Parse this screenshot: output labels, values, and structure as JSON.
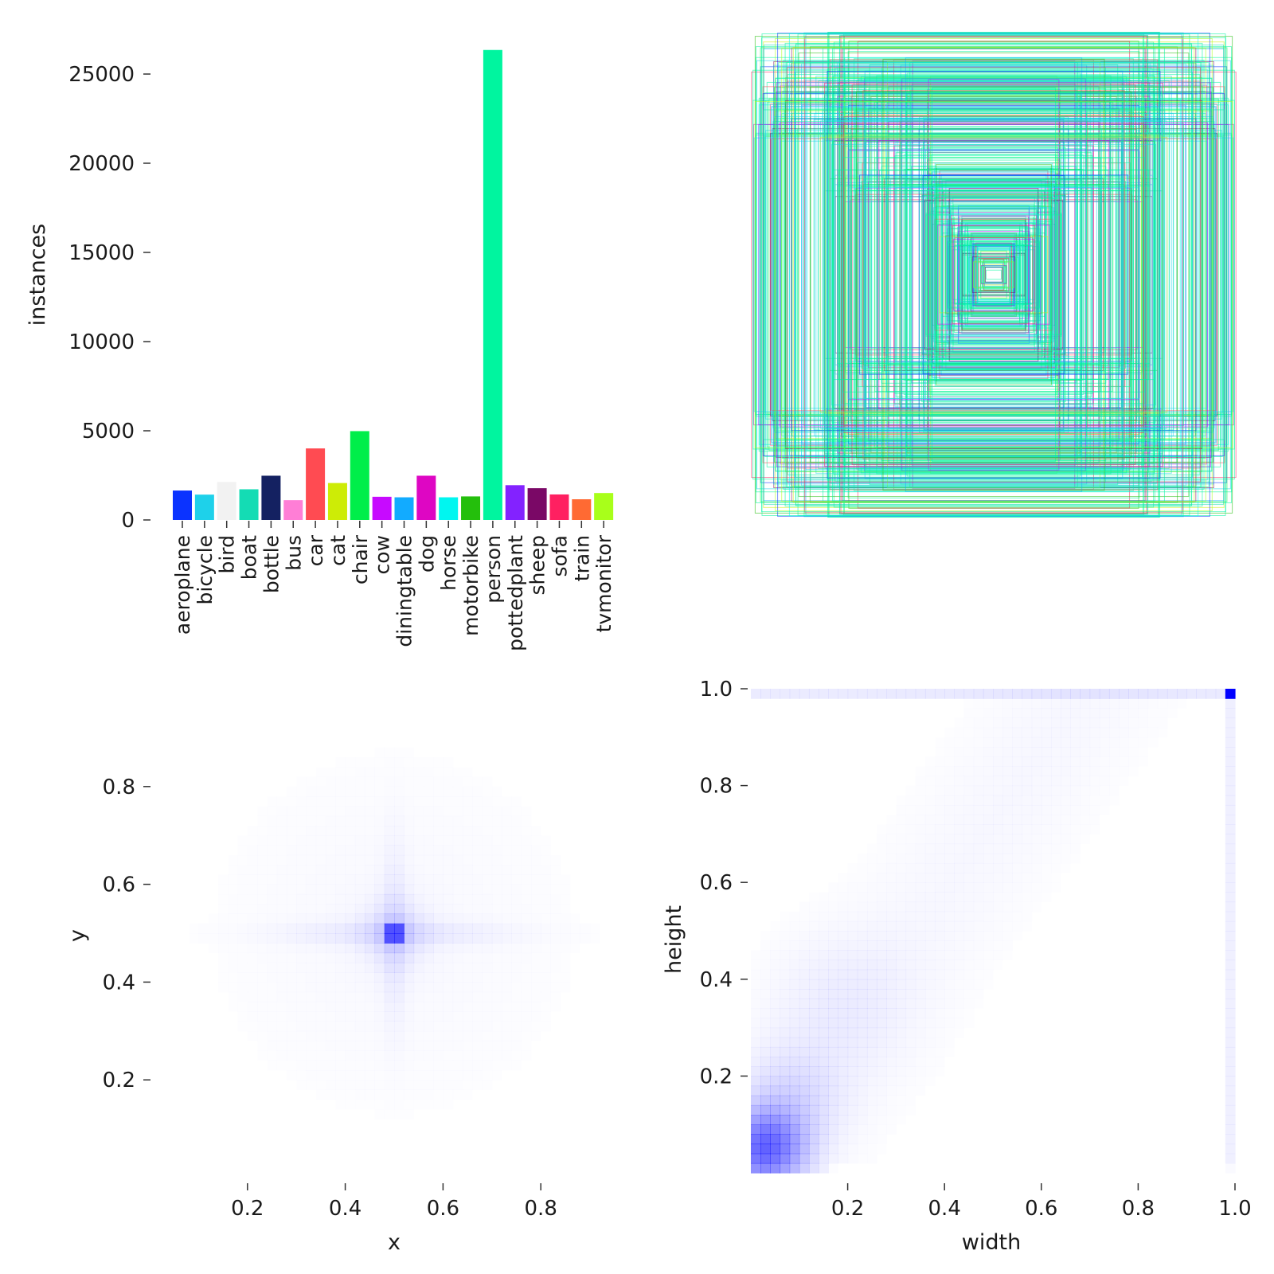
{
  "chart_data": [
    {
      "type": "bar",
      "ylabel": "instances",
      "ylim": [
        0,
        26500
      ],
      "yticks": [
        0,
        5000,
        10000,
        15000,
        20000,
        25000
      ],
      "categories": [
        "aeroplane",
        "bicycle",
        "bird",
        "boat",
        "bottle",
        "bus",
        "car",
        "cat",
        "chair",
        "cow",
        "diningtable",
        "dog",
        "horse",
        "motorbike",
        "person",
        "pottedplant",
        "sheep",
        "sofa",
        "train",
        "tvmonitor"
      ],
      "values": [
        1650,
        1420,
        2130,
        1720,
        2480,
        1110,
        4010,
        2070,
        4980,
        1300,
        1270,
        2480,
        1270,
        1320,
        26350,
        1950,
        1780,
        1430,
        1160,
        1510
      ],
      "colors": [
        "#0b33ff",
        "#1ed1ea",
        "#f2f2f2",
        "#14dcb4",
        "#142161",
        "#ff7ed6",
        "#ff4b52",
        "#cdec06",
        "#00ee4a",
        "#c70aff",
        "#12abff",
        "#de06c3",
        "#00f6f0",
        "#24bf0c",
        "#00f59f",
        "#8322ff",
        "#7a0866",
        "#ff2061",
        "#ff6a33",
        "#a8ff1a"
      ]
    },
    {
      "type": "boxes",
      "description": "Label boxes drawn centered (xywh, normalized), colored by class",
      "colors": [
        "#0b33ff",
        "#1ed1ea",
        "#14dcb4",
        "#ff4b52",
        "#cdec06",
        "#00ee4a",
        "#c70aff",
        "#12abff",
        "#de06c3",
        "#00f6f0",
        "#24bf0c",
        "#00f59f",
        "#8322ff",
        "#7a0866",
        "#ff2061",
        "#a8ff1a"
      ]
    },
    {
      "type": "heatmap",
      "xlabel": "x",
      "ylabel": "y",
      "xticks": [
        0.2,
        0.4,
        0.6,
        0.8
      ],
      "yticks": [
        0.2,
        0.4,
        0.6,
        0.8
      ],
      "xlim": [
        0.0,
        1.0
      ],
      "ylim": [
        0.0,
        1.0
      ],
      "peak": [
        0.5,
        0.5
      ],
      "color": "#0000ff"
    },
    {
      "type": "heatmap",
      "xlabel": "width",
      "ylabel": "height",
      "xticks": [
        0.2,
        0.4,
        0.6,
        0.8,
        1.0
      ],
      "yticks": [
        0.2,
        0.4,
        0.6,
        0.8,
        1.0
      ],
      "xlim": [
        0.0,
        1.0
      ],
      "ylim": [
        0.0,
        1.0
      ],
      "peaks": [
        [
          0.03,
          0.06
        ],
        [
          1.0,
          1.0
        ]
      ],
      "color": "#0000ff"
    }
  ]
}
